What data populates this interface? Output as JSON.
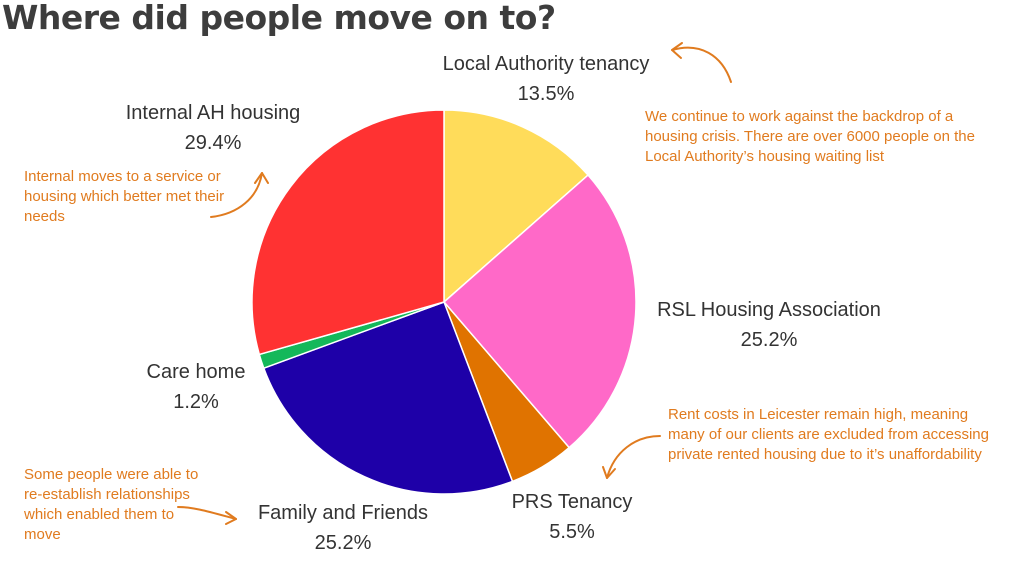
{
  "title": "Where did people move on to?",
  "chart_data": {
    "type": "pie",
    "slices": [
      {
        "name": "Local Authority tenancy",
        "value": 13.5,
        "label": "13.5%",
        "color": "#ffdc5a"
      },
      {
        "name": "RSL Housing Association",
        "value": 25.2,
        "label": "25.2%",
        "color": "#ff69c8"
      },
      {
        "name": "PRS Tenancy",
        "value": 5.5,
        "label": "5.5%",
        "color": "#e07300"
      },
      {
        "name": "Family and Friends",
        "value": 25.2,
        "label": "25.2%",
        "color": "#1e00a8"
      },
      {
        "name": "Care home",
        "value": 1.2,
        "label": "1.2%",
        "color": "#14b85a"
      },
      {
        "name": "Internal AH housing",
        "value": 29.4,
        "label": "29.4%",
        "color": "#ff3232"
      }
    ]
  },
  "annotations": {
    "local_authority": "We continue to work against the backdrop of a housing crisis. There are over 6000 people on the Local Authority’s housing waiting list",
    "internal": "Internal moves to a service or housing which better met their needs",
    "rent": "Rent costs in Leicester remain high, meaning many of our clients are excluded from accessing private rented housing due to it’s unaffordability",
    "family": "Some people were able to re-establish relationships which enabled them to move"
  },
  "colors": {
    "annotation": "#e07b1f",
    "title": "#3d3d3d",
    "label": "#333333"
  }
}
